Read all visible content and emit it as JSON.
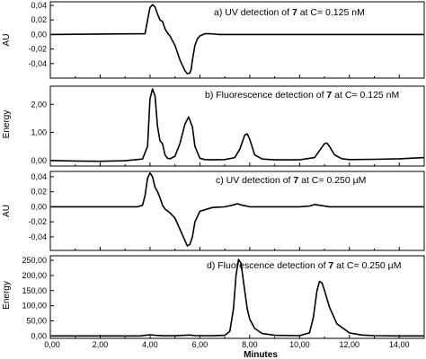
{
  "chart_data": [
    {
      "type": "line",
      "annotation": {
        "prefix": "a)  UV detection of ",
        "compound": "7",
        "suffix": " at C= 0.125 nM"
      },
      "ylabel": "AU",
      "xlim": [
        0,
        15
      ],
      "ylim": [
        -0.06,
        0.045
      ],
      "y_ticks": [
        "0,04",
        "0,02",
        "0,00",
        "-0,02",
        "-0,04"
      ],
      "y_tick_values": [
        0.04,
        0.02,
        0.0,
        -0.02,
        -0.04
      ],
      "series": [
        {
          "x": [
            0,
            3.8,
            3.9,
            4.0,
            4.1,
            4.2,
            4.3,
            4.4,
            4.5,
            4.6,
            4.7,
            4.8,
            5.0,
            5.2,
            5.4,
            5.5,
            5.6,
            5.65,
            5.7,
            5.8,
            5.9,
            6.0,
            6.2,
            6.4,
            6.6,
            6.8,
            7.0,
            8.0,
            10.0,
            12.0,
            15.0
          ],
          "y": [
            0.0,
            0.001,
            0.02,
            0.037,
            0.041,
            0.038,
            0.028,
            0.02,
            0.018,
            0.008,
            0.002,
            -0.002,
            -0.015,
            -0.035,
            -0.05,
            -0.054,
            -0.053,
            -0.048,
            -0.035,
            -0.015,
            -0.006,
            -0.002,
            0.001,
            0.001,
            0.0005,
            0.0,
            0.0,
            0.0,
            0.0,
            0.0,
            0.0
          ]
        }
      ]
    },
    {
      "type": "line",
      "annotation": {
        "prefix": "b)  Fluorescence detection of ",
        "compound": "7",
        "suffix": " at C= 0.125 nM"
      },
      "ylabel": "Energy",
      "xlim": [
        0,
        15
      ],
      "ylim": [
        -0.2,
        2.65
      ],
      "y_ticks": [
        "2,00",
        "1,00",
        "0,00"
      ],
      "y_tick_values": [
        2.0,
        1.0,
        0.0
      ],
      "series": [
        {
          "x": [
            0,
            1.0,
            2.0,
            3.0,
            3.7,
            3.9,
            4.0,
            4.1,
            4.2,
            4.3,
            4.4,
            4.5,
            4.6,
            4.7,
            4.8,
            5.0,
            5.2,
            5.4,
            5.55,
            5.7,
            5.8,
            6.0,
            6.2,
            6.5,
            7.0,
            7.4,
            7.6,
            7.8,
            7.9,
            8.0,
            8.2,
            8.5,
            9.0,
            10.0,
            10.6,
            10.8,
            11.0,
            11.1,
            11.2,
            11.4,
            11.7,
            12.0,
            13.0,
            14.0,
            15.0
          ],
          "y": [
            0.0,
            -0.02,
            -0.03,
            -0.01,
            0.05,
            0.5,
            2.2,
            2.55,
            2.3,
            1.2,
            0.7,
            0.6,
            0.2,
            0.08,
            0.06,
            0.15,
            0.6,
            1.3,
            1.55,
            1.2,
            0.5,
            0.08,
            0.03,
            0.02,
            0.03,
            0.1,
            0.4,
            0.9,
            0.95,
            0.75,
            0.2,
            0.05,
            0.02,
            0.02,
            0.1,
            0.35,
            0.6,
            0.62,
            0.5,
            0.2,
            0.06,
            0.03,
            0.04,
            0.06,
            0.1
          ]
        }
      ]
    },
    {
      "type": "line",
      "annotation": {
        "prefix": "c)  UV detection of ",
        "compound": "7",
        "suffix": " at C= 0.250 µM"
      },
      "ylabel": "AU",
      "xlim": [
        0,
        15
      ],
      "ylim": [
        -0.058,
        0.047
      ],
      "y_ticks": [
        "0,04",
        "0,02",
        "0,00",
        "-0,02",
        "-0,04"
      ],
      "y_tick_values": [
        0.04,
        0.02,
        0.0,
        -0.02,
        -0.04
      ],
      "series": [
        {
          "x": [
            0,
            3.5,
            3.7,
            3.8,
            3.9,
            4.0,
            4.1,
            4.2,
            4.3,
            4.4,
            4.5,
            4.6,
            4.8,
            5.0,
            5.2,
            5.4,
            5.5,
            5.6,
            5.7,
            5.8,
            6.0,
            6.5,
            7.0,
            7.3,
            7.5,
            7.7,
            8.0,
            8.5,
            9.0,
            10.0,
            10.4,
            10.6,
            10.8,
            11.2,
            12.0,
            15.0
          ],
          "y": [
            0.0,
            0.0,
            0.002,
            0.015,
            0.038,
            0.045,
            0.04,
            0.026,
            0.02,
            0.012,
            0.002,
            -0.003,
            -0.008,
            -0.015,
            -0.03,
            -0.045,
            -0.052,
            -0.05,
            -0.04,
            -0.02,
            -0.006,
            -0.001,
            0.0,
            0.002,
            0.004,
            0.002,
            0.0,
            0.0,
            0.0,
            0.0,
            0.001,
            0.003,
            0.002,
            0.0,
            0.0,
            0.0
          ]
        }
      ]
    },
    {
      "type": "line",
      "annotation": {
        "prefix": "d)  Fluorescence detection of ",
        "compound": "7",
        "suffix": " at C= 0.250 µM"
      },
      "ylabel": "Energy",
      "xlabel": "Minutes",
      "xlim": [
        0,
        15
      ],
      "ylim": [
        -8,
        265
      ],
      "y_ticks": [
        "250,00",
        "200,00",
        "150,00",
        "100,00",
        "50,00",
        "0,00"
      ],
      "y_tick_values": [
        250,
        200,
        150,
        100,
        50,
        0
      ],
      "x_ticks": [
        "0,00",
        "2,00",
        "4,00",
        "6,00",
        "8,00",
        "10,00",
        "12,00",
        "14,00"
      ],
      "x_tick_values": [
        0,
        2,
        4,
        6,
        8,
        10,
        12,
        14
      ],
      "series": [
        {
          "x": [
            0,
            3.6,
            3.9,
            4.0,
            4.2,
            4.5,
            5.0,
            5.4,
            5.6,
            5.8,
            6.5,
            7.0,
            7.2,
            7.35,
            7.45,
            7.55,
            7.65,
            7.75,
            7.9,
            8.0,
            8.2,
            8.5,
            9.0,
            10.0,
            10.4,
            10.55,
            10.7,
            10.8,
            10.9,
            11.0,
            11.2,
            11.5,
            12.0,
            12.5,
            13.0,
            14.0,
            15.0
          ],
          "y": [
            0.0,
            0.0,
            3.0,
            4.0,
            2.0,
            0.5,
            0.5,
            2.0,
            3.0,
            1.0,
            0.5,
            2.0,
            15.0,
            90.0,
            200.0,
            253.0,
            240.0,
            180.0,
            90.0,
            55.0,
            25.0,
            8.0,
            2.0,
            1.0,
            10.0,
            60.0,
            150.0,
            180.0,
            175.0,
            150.0,
            95.0,
            40.0,
            10.0,
            3.0,
            1.0,
            0.0,
            0.0
          ]
        }
      ]
    }
  ]
}
